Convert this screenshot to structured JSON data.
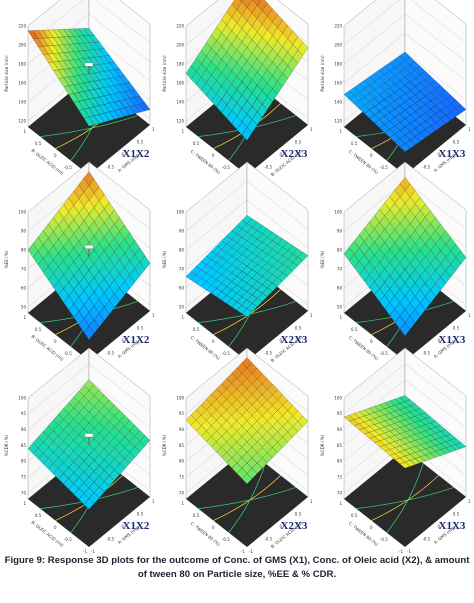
{
  "caption": "Figure 9: Response 3D plots for the outcome of Conc. of GMS (X1), Conc. of Oleic acid (X2), & amount\nof tween 80 on Particle size, %EE & % CDR.",
  "colors": {
    "surface_low": "#1f3dff",
    "surface_mid": "#29e08a",
    "surface_high": "#e2241a",
    "floor": "#2a2a2a"
  },
  "chart_data": [
    {
      "type": "surface",
      "title": "3D Surface",
      "tag": "X1X2",
      "x_axis": {
        "label": "A: GMS (mg)",
        "range": [
          -1,
          1
        ],
        "ticks": [
          "-1",
          "-0.5",
          "0",
          "0.5",
          "1"
        ]
      },
      "y_axis": {
        "label": "B: OLEIC ACID (ml)",
        "range": [
          -1,
          1
        ],
        "ticks": [
          "-1",
          "-0.5",
          "0",
          "0.5",
          "1"
        ]
      },
      "z_axis": {
        "label": "Particle size (nm)",
        "range": [
          120,
          220
        ],
        "ticks": [
          "120",
          "140",
          "160",
          "180",
          "200",
          "220"
        ]
      },
      "corners": {
        "x_low_y_low": 165,
        "x_high_y_low": 130,
        "x_low_y_high": 215,
        "x_high_y_high": 165
      },
      "design_point": "yes"
    },
    {
      "type": "surface",
      "title": "3D Surface",
      "tag": "X2X3",
      "x_axis": {
        "label": "B: OLEIC ACID (ml)",
        "range": [
          -1,
          1
        ],
        "ticks": [
          "-1",
          "-0.5",
          "0",
          "0.5",
          "1"
        ]
      },
      "y_axis": {
        "label": "C: TWEEN 80 (%)",
        "range": [
          -1,
          1
        ],
        "ticks": [
          "-1",
          "-0.5",
          "0",
          "0.5",
          "1"
        ]
      },
      "z_axis": {
        "label": "Particle size (nm)",
        "range": [
          120,
          220
        ],
        "ticks": [
          "120",
          "140",
          "160",
          "180",
          "200",
          "220"
        ]
      },
      "corners": {
        "x_low_y_low": 150,
        "x_high_y_low": 195,
        "x_low_y_high": 170,
        "x_high_y_high": 215
      },
      "design_point": "no"
    },
    {
      "type": "surface",
      "title": "3D Surface",
      "tag": "X1X3",
      "x_axis": {
        "label": "A: GMS (mg)",
        "range": [
          -1,
          1
        ],
        "ticks": [
          "-1",
          "-0.5",
          "0",
          "0.5",
          "1"
        ]
      },
      "y_axis": {
        "label": "C: TWEEN 80 (%)",
        "range": [
          -1,
          1
        ],
        "ticks": [
          "-1",
          "-0.5",
          "0",
          "0.5",
          "1"
        ]
      },
      "z_axis": {
        "label": "Particle size (nm)",
        "range": [
          120,
          220
        ],
        "ticks": [
          "120",
          "140",
          "160",
          "180",
          "200",
          "220"
        ]
      },
      "corners": {
        "x_low_y_low": 138,
        "x_high_y_low": 130,
        "x_low_y_high": 148,
        "x_high_y_high": 140
      },
      "design_point": "no"
    },
    {
      "type": "surface",
      "title": "3D Surface",
      "tag": "X1X2",
      "x_axis": {
        "label": "A: GMS (mg)",
        "range": [
          -1,
          1
        ],
        "ticks": [
          "-1",
          "-0.5",
          "0",
          "0.5",
          "1"
        ]
      },
      "y_axis": {
        "label": "B: OLEIC ACID (ml)",
        "range": [
          -1,
          1
        ],
        "ticks": [
          "-1",
          "-0.5",
          "0",
          "0.5",
          "1"
        ]
      },
      "z_axis": {
        "label": "%EE (%)",
        "range": [
          50,
          100
        ],
        "ticks": [
          "50",
          "60",
          "70",
          "80",
          "90",
          "100"
        ]
      },
      "corners": {
        "x_low_y_low": 58,
        "x_high_y_low": 72,
        "x_low_y_high": 80,
        "x_high_y_high": 95
      },
      "design_point": "yes"
    },
    {
      "type": "surface",
      "title": "3D Surface",
      "tag": "X2X3",
      "x_axis": {
        "label": "B: OLEIC ACID (ml)",
        "range": [
          -1,
          1
        ],
        "ticks": [
          "-1",
          "-0.5",
          "0",
          "0.5",
          "1"
        ]
      },
      "y_axis": {
        "label": "C: TWEEN 80 (%)",
        "range": [
          -1,
          1
        ],
        "ticks": [
          "-1",
          "-0.5",
          "0",
          "0.5",
          "1"
        ]
      },
      "z_axis": {
        "label": "%EE (%)",
        "range": [
          50,
          100
        ],
        "ticks": [
          "50",
          "60",
          "70",
          "80",
          "90",
          "100"
        ]
      },
      "corners": {
        "x_low_y_low": 70,
        "x_high_y_low": 76,
        "x_low_y_high": 66,
        "x_high_y_high": 72
      },
      "design_point": "no"
    },
    {
      "type": "surface",
      "title": "3D Surface",
      "tag": "X1X3",
      "x_axis": {
        "label": "A: GMS (mg)",
        "range": [
          -1,
          1
        ],
        "ticks": [
          "-1",
          "-0.5",
          "0",
          "0.5",
          "1"
        ]
      },
      "y_axis": {
        "label": "C: TWEEN 80 (%)",
        "range": [
          -1,
          1
        ],
        "ticks": [
          "-1",
          "-0.5",
          "0",
          "0.5",
          "1"
        ]
      },
      "z_axis": {
        "label": "%EE (%)",
        "range": [
          50,
          100
        ],
        "ticks": [
          "50",
          "60",
          "70",
          "80",
          "90",
          "100"
        ]
      },
      "corners": {
        "x_low_y_low": 60,
        "x_high_y_low": 75,
        "x_low_y_high": 78,
        "x_high_y_high": 92
      },
      "design_point": "no"
    },
    {
      "type": "surface",
      "title": "3D Surface",
      "tag": "X1X2",
      "x_axis": {
        "label": "A: GMS (mg)",
        "range": [
          -1,
          1
        ],
        "ticks": [
          "-1",
          "-0.5",
          "0",
          "0.5",
          "1"
        ]
      },
      "y_axis": {
        "label": "B: OLEIC ACID (ml)",
        "range": [
          -1,
          1
        ],
        "ticks": [
          "-1",
          "-0.5",
          "0",
          "0.5",
          "1"
        ]
      },
      "z_axis": {
        "label": "%CDR (%)",
        "range": [
          70,
          100
        ],
        "ticks": [
          "70",
          "75",
          "80",
          "85",
          "90",
          "95",
          "100"
        ]
      },
      "corners": {
        "x_low_y_low": 80,
        "x_high_y_low": 86,
        "x_low_y_high": 84,
        "x_high_y_high": 90
      },
      "design_point": "yes"
    },
    {
      "type": "surface",
      "title": "3D Surface",
      "tag": "X2X3",
      "x_axis": {
        "label": "B: OLEIC ACID (ml)",
        "range": [
          -1,
          1
        ],
        "ticks": [
          "-1",
          "-0.5",
          "0",
          "0.5",
          "1"
        ]
      },
      "y_axis": {
        "label": "C: TWEEN 80 (%)",
        "range": [
          -1,
          1
        ],
        "ticks": [
          "-1",
          "-0.5",
          "0",
          "0.5",
          "1"
        ]
      },
      "z_axis": {
        "label": "%CDR (%)",
        "range": [
          70,
          100
        ],
        "ticks": [
          "70",
          "75",
          "80",
          "85",
          "90",
          "95",
          "100"
        ]
      },
      "corners": {
        "x_low_y_low": 88,
        "x_high_y_low": 92,
        "x_low_y_high": 93,
        "x_high_y_high": 97
      },
      "design_point": "no"
    },
    {
      "type": "surface",
      "title": "3D Surface",
      "tag": "X1X3",
      "x_axis": {
        "label": "A: GMS (mg)",
        "range": [
          -1,
          1
        ],
        "ticks": [
          "-1",
          "-0.5",
          "0",
          "0.5",
          "1"
        ]
      },
      "y_axis": {
        "label": "C: TWEEN 80 (%)",
        "range": [
          -1,
          1
        ],
        "ticks": [
          "-1",
          "-0.5",
          "0",
          "0.5",
          "1"
        ]
      },
      "z_axis": {
        "label": "%CDR (%)",
        "range": [
          70,
          100
        ],
        "ticks": [
          "70",
          "75",
          "80",
          "85",
          "90",
          "95",
          "100"
        ]
      },
      "corners": {
        "x_low_y_low": 93,
        "x_high_y_low": 84,
        "x_low_y_high": 94,
        "x_high_y_high": 85
      },
      "design_point": "no"
    }
  ]
}
